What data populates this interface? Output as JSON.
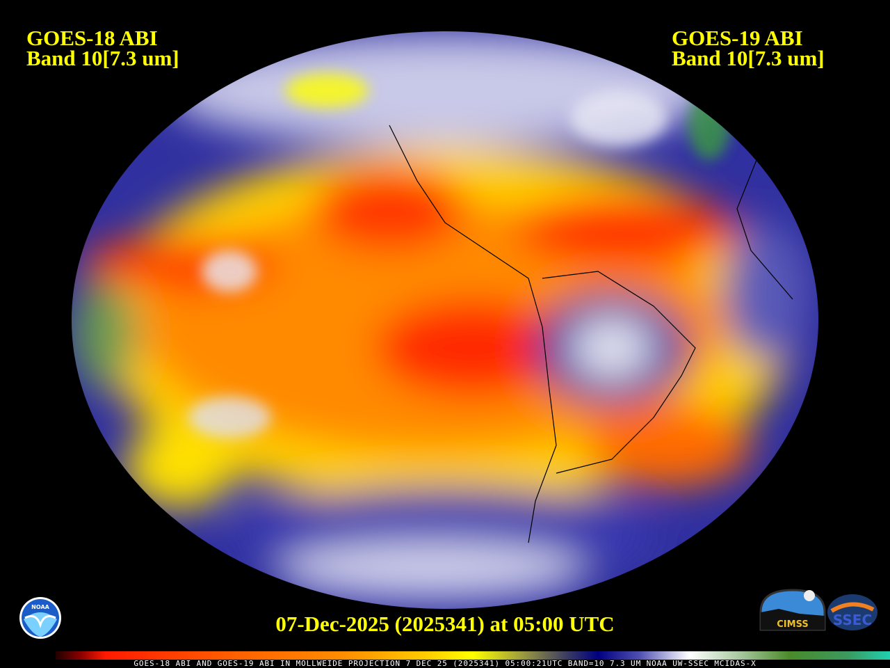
{
  "left_title": {
    "line1": "GOES-18 ABI",
    "line2": "Band 10[7.3 um]"
  },
  "right_title": {
    "line1": "GOES-19 ABI",
    "line2": "Band 10[7.3 um]"
  },
  "timestamp": "07-Dec-2025 (2025341) at 05:00 UTC",
  "footer": "GOES-18 ABI AND GOES-19 ABI IN MOLLWEIDE PROJECTION 7 DEC 25 (2025341) 05:00:21UTC BAND=10 7.3 UM NOAA UW-SSEC MCIDAS-X",
  "logos": {
    "noaa": "NOAA",
    "cimss": "CIMSS",
    "ssec": "SSEC"
  },
  "projection": "Mollweide",
  "colors": {
    "title_text": "#ffff00",
    "dry": "#ff3000",
    "moist": "#000080",
    "very_moist": "#3a8a2a"
  }
}
